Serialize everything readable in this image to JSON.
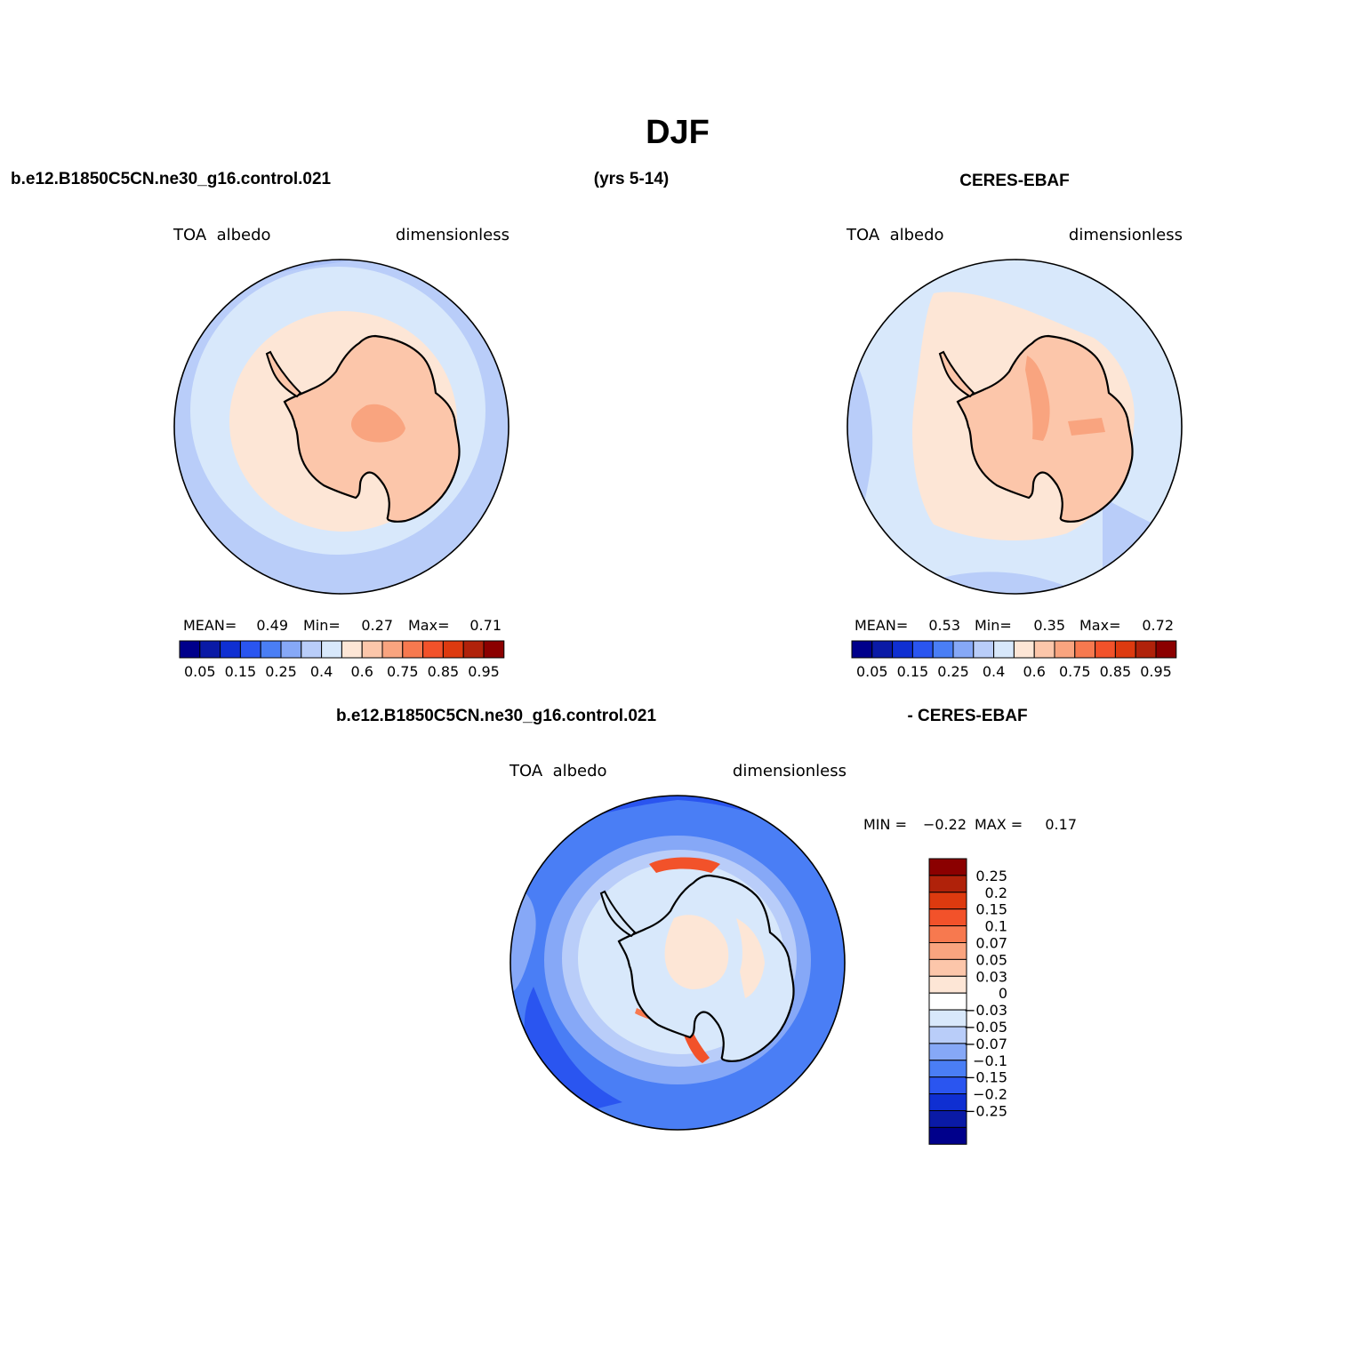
{
  "title": "DJF",
  "header": {
    "model_case": "b.e12.B1850C5CN.ne30_g16.control.021",
    "years": "(yrs 5-14)",
    "obs_name": "CERES-EBAF",
    "diff_case": "b.e12.B1850C5CN.ne30_g16.control.021",
    "diff_obs": "- CERES-EBAF"
  },
  "panels": {
    "model": {
      "variable": "TOA  albedo",
      "units": "dimensionless",
      "mean_label": "MEAN=",
      "mean": "0.49",
      "min_label": "Min=",
      "min": "0.27",
      "max_label": "Max=",
      "max": "0.71"
    },
    "obs": {
      "variable": "TOA  albedo",
      "units": "dimensionless",
      "mean_label": "MEAN=",
      "mean": "0.53",
      "min_label": "Min=",
      "min": "0.35",
      "max_label": "Max=",
      "max": "0.72"
    },
    "diff": {
      "variable": "TOA  albedo",
      "units": "dimensionless",
      "min_label": "MIN =",
      "min": "−0.22",
      "max_label": "MAX =",
      "max": "0.17"
    }
  },
  "colorbar_main": {
    "colors": [
      "#00008b",
      "#0a1aa6",
      "#0f2fd2",
      "#2a55f0",
      "#4a7ef5",
      "#86a8f7",
      "#b9cdf9",
      "#d8e8fb",
      "#fde6d6",
      "#fcc6aa",
      "#f9a47f",
      "#f7794f",
      "#f2522a",
      "#dd3a0f",
      "#b0220a",
      "#8b0000"
    ],
    "tick_labels": [
      "0.05",
      "0.15",
      "0.25",
      "0.4",
      "0.6",
      "0.75",
      "0.85",
      "0.95"
    ]
  },
  "colorbar_diff": {
    "colors_top_to_bottom": [
      "#8b0000",
      "#b0220a",
      "#dd3a0f",
      "#f2522a",
      "#f7794f",
      "#f9a47f",
      "#fcc6aa",
      "#fde6d6",
      "#ffffff",
      "#d8e8fb",
      "#b9cdf9",
      "#86a8f7",
      "#4a7ef5",
      "#2a55f0",
      "#0f2fd2",
      "#0a1aa6",
      "#00008b"
    ],
    "tick_labels": [
      "0.25",
      "0.2",
      "0.15",
      "0.1",
      "0.07",
      "0.05",
      "0.03",
      "0",
      "−0.03",
      "−0.05",
      "−0.07",
      "−0.1",
      "−0.15",
      "−0.2",
      "−0.25"
    ]
  }
}
